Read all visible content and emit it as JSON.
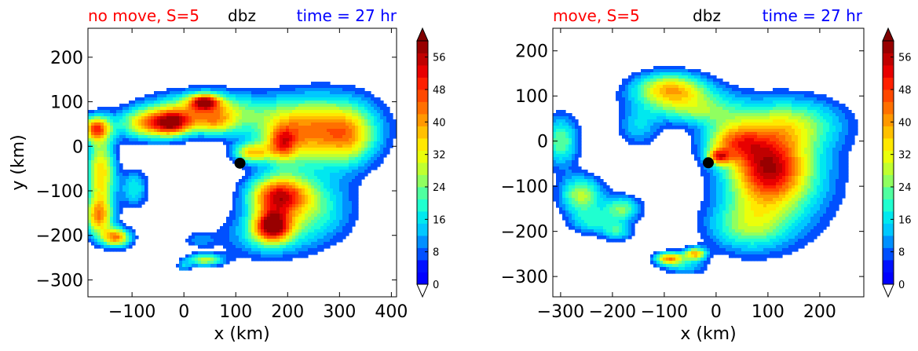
{
  "chart_data": [
    {
      "type": "heatmap",
      "title_left": "no move, S=5",
      "title_center": "dbz",
      "title_right": "time = 27 hr",
      "title_left_color": "#ff0000",
      "title_center_color": "#000000",
      "title_right_color": "#0000ff",
      "xlabel": "x (km)",
      "ylabel": "y (km)",
      "xlim": [
        -185,
        410
      ],
      "ylim": [
        -338,
        265
      ],
      "xticks": [
        -100,
        0,
        100,
        200,
        300,
        400
      ],
      "yticks": [
        -300,
        -200,
        -100,
        0,
        100,
        200
      ],
      "xtick_labels": [
        "−100",
        "0",
        "100",
        "200",
        "300",
        "400"
      ],
      "ytick_labels": [
        "−300",
        "−200",
        "−100",
        "0",
        "100",
        "200"
      ],
      "marker": {
        "x": 108,
        "y": -38
      },
      "blobs": [
        {
          "x": 280,
          "y": 40,
          "sx": 70,
          "sy": 55,
          "a": 28
        },
        {
          "x": 320,
          "y": 20,
          "sx": 35,
          "sy": 45,
          "a": 18
        },
        {
          "x": 200,
          "y": 30,
          "sx": 55,
          "sy": 50,
          "a": 24
        },
        {
          "x": 190,
          "y": 5,
          "sx": 18,
          "sy": 25,
          "a": 22
        },
        {
          "x": 130,
          "y": -15,
          "sx": 25,
          "sy": 15,
          "a": 28
        },
        {
          "x": 180,
          "y": -110,
          "sx": 40,
          "sy": 30,
          "a": 42
        },
        {
          "x": 170,
          "y": -180,
          "sx": 25,
          "sy": 25,
          "a": 44
        },
        {
          "x": 240,
          "y": -140,
          "sx": 60,
          "sy": 55,
          "a": 22
        },
        {
          "x": 150,
          "y": -200,
          "sx": 60,
          "sy": 40,
          "a": 14
        },
        {
          "x": 40,
          "y": 80,
          "sx": 70,
          "sy": 30,
          "a": 34
        },
        {
          "x": -20,
          "y": 50,
          "sx": 25,
          "sy": 20,
          "a": 32
        },
        {
          "x": -70,
          "y": 50,
          "sx": 40,
          "sy": 25,
          "a": 34
        },
        {
          "x": 40,
          "y": 100,
          "sx": 20,
          "sy": 12,
          "a": 36
        },
        {
          "x": 60,
          "y": 50,
          "sx": 30,
          "sy": 20,
          "a": 18
        },
        {
          "x": -170,
          "y": 40,
          "sx": 20,
          "sy": 20,
          "a": 40
        },
        {
          "x": -160,
          "y": -60,
          "sx": 20,
          "sy": 60,
          "a": 36
        },
        {
          "x": -165,
          "y": -160,
          "sx": 20,
          "sy": 30,
          "a": 34
        },
        {
          "x": -130,
          "y": -205,
          "sx": 20,
          "sy": 15,
          "a": 40
        },
        {
          "x": -95,
          "y": -95,
          "sx": 18,
          "sy": 30,
          "a": 18
        },
        {
          "x": 40,
          "y": -255,
          "sx": 25,
          "sy": 10,
          "a": 28
        },
        {
          "x": 30,
          "y": -210,
          "sx": 22,
          "sy": 12,
          "a": 10
        },
        {
          "x": 0,
          "y": -270,
          "sx": 10,
          "sy": 8,
          "a": 12
        }
      ]
    },
    {
      "type": "heatmap",
      "title_left": "move, S=5",
      "title_center": "dbz",
      "title_right": "time = 27 hr",
      "title_left_color": "#ff0000",
      "title_center_color": "#000000",
      "title_right_color": "#0000ff",
      "xlabel": "x (km)",
      "ylabel": "",
      "xlim": [
        -315,
        285
      ],
      "ylim": [
        -345,
        250
      ],
      "xticks": [
        -300,
        -200,
        -100,
        0,
        100,
        200
      ],
      "yticks": [
        -300,
        -200,
        -100,
        0,
        100,
        200
      ],
      "xtick_labels": [
        "−300",
        "−200",
        "−100",
        "0",
        "100",
        "200"
      ],
      "ytick_labels": [
        "−300",
        "−200",
        "−100",
        "0",
        "100",
        "200"
      ],
      "marker": {
        "x": -15,
        "y": -48
      },
      "blobs": [
        {
          "x": 100,
          "y": -60,
          "sx": 50,
          "sy": 55,
          "a": 36
        },
        {
          "x": 120,
          "y": -80,
          "sx": 80,
          "sy": 90,
          "a": 22
        },
        {
          "x": 150,
          "y": 40,
          "sx": 70,
          "sy": 40,
          "a": 20
        },
        {
          "x": 60,
          "y": -190,
          "sx": 55,
          "sy": 40,
          "a": 20
        },
        {
          "x": 30,
          "y": 0,
          "sx": 40,
          "sy": 30,
          "a": 28
        },
        {
          "x": 5,
          "y": -35,
          "sx": 15,
          "sy": 12,
          "a": 30
        },
        {
          "x": -90,
          "y": 120,
          "sx": 50,
          "sy": 25,
          "a": 30
        },
        {
          "x": -60,
          "y": 90,
          "sx": 70,
          "sy": 25,
          "a": 18
        },
        {
          "x": -30,
          "y": 60,
          "sx": 60,
          "sy": 20,
          "a": 14
        },
        {
          "x": -150,
          "y": 30,
          "sx": 30,
          "sy": 30,
          "a": 14
        },
        {
          "x": -300,
          "y": 0,
          "sx": 25,
          "sy": 40,
          "a": 24
        },
        {
          "x": -260,
          "y": -120,
          "sx": 30,
          "sy": 30,
          "a": 28
        },
        {
          "x": -180,
          "y": -150,
          "sx": 25,
          "sy": 20,
          "a": 24
        },
        {
          "x": -190,
          "y": -200,
          "sx": 20,
          "sy": 15,
          "a": 18
        },
        {
          "x": -240,
          "y": -180,
          "sx": 30,
          "sy": 20,
          "a": 16
        },
        {
          "x": -90,
          "y": -260,
          "sx": 20,
          "sy": 10,
          "a": 40
        },
        {
          "x": -40,
          "y": -250,
          "sx": 15,
          "sy": 10,
          "a": 36
        },
        {
          "x": -60,
          "y": -280,
          "sx": 30,
          "sy": 12,
          "a": 14
        }
      ]
    }
  ],
  "colorbar": {
    "tick_labels": [
      "0",
      "8",
      "16",
      "24",
      "32",
      "40",
      "48",
      "56"
    ],
    "levels": [
      0,
      3,
      6,
      9,
      12,
      15,
      18,
      21,
      24,
      27,
      30,
      33,
      36,
      39,
      42,
      45,
      48,
      51,
      54,
      57,
      60
    ],
    "colors": [
      "#0000ff",
      "#0010ff",
      "#0050ff",
      "#0090ff",
      "#00c8ff",
      "#00e8ef",
      "#20ffd0",
      "#50ffa0",
      "#90ff60",
      "#c0ff30",
      "#eaff0b",
      "#ffe800",
      "#ffc000",
      "#ff9800",
      "#ff7000",
      "#ff4800",
      "#ff2000",
      "#e80000",
      "#c00000",
      "#980000"
    ],
    "under_color": "#ffffff",
    "over_color": "#800000"
  }
}
